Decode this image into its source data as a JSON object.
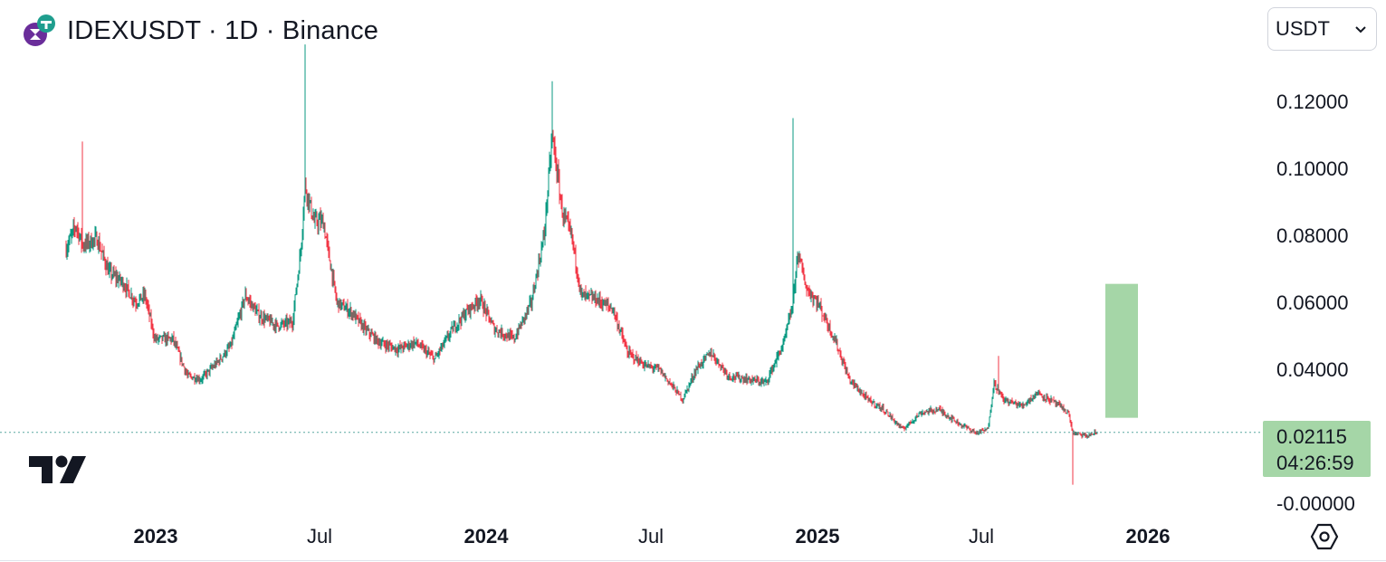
{
  "header": {
    "title": "IDEXUSDT · 1D · Binance",
    "logo_icon": "idex-logo-icon"
  },
  "currency_select": {
    "value": "USDT",
    "chevron_icon": "chevron-down-icon"
  },
  "colors": {
    "up": "#089981",
    "down": "#f23645",
    "current_price_bg": "#a5d6a7",
    "projection_box": "#a5d6a7",
    "axis_text": "#131722"
  },
  "chart_data": {
    "type": "candlestick",
    "symbol": "IDEXUSDT",
    "interval": "1D",
    "exchange": "Binance",
    "y_axis": {
      "range": [
        -0.001,
        0.14
      ],
      "ticks": [
        "0.12000",
        "0.10000",
        "0.08000",
        "0.06000",
        "0.04000",
        "-0.00000"
      ],
      "tick_values": [
        0.12,
        0.1,
        0.08,
        0.06,
        0.04,
        0.0
      ]
    },
    "x_axis": {
      "ticks": [
        {
          "label": "2023",
          "bold": true,
          "date": "2023-01-01"
        },
        {
          "label": "Jul",
          "bold": false,
          "date": "2023-07-01"
        },
        {
          "label": "2024",
          "bold": true,
          "date": "2024-01-01"
        },
        {
          "label": "Jul",
          "bold": false,
          "date": "2024-07-01"
        },
        {
          "label": "2025",
          "bold": true,
          "date": "2025-01-01"
        },
        {
          "label": "Jul",
          "bold": false,
          "date": "2025-07-01"
        },
        {
          "label": "2026",
          "bold": true,
          "date": "2026-01-01"
        }
      ]
    },
    "current_price": {
      "value": "0.02115",
      "countdown": "04:26:59"
    },
    "projection": {
      "from_date": "2025-11-15",
      "to_date": "2025-12-21",
      "low": 0.0255,
      "high": 0.0655
    },
    "price_path": [
      [
        "2022-09-24",
        0.076
      ],
      [
        "2022-10-05",
        0.083
      ],
      [
        "2022-10-12",
        0.077
      ],
      [
        "2022-10-28",
        0.079
      ],
      [
        "2022-11-10",
        0.069
      ],
      [
        "2022-11-25",
        0.066
      ],
      [
        "2022-12-10",
        0.06
      ],
      [
        "2022-12-20",
        0.062
      ],
      [
        "2022-12-31",
        0.049
      ],
      [
        "2023-01-20",
        0.049
      ],
      [
        "2023-02-05",
        0.038
      ],
      [
        "2023-02-20",
        0.037
      ],
      [
        "2023-03-10",
        0.042
      ],
      [
        "2023-03-25",
        0.047
      ],
      [
        "2023-04-10",
        0.062
      ],
      [
        "2023-04-25",
        0.056
      ],
      [
        "2023-05-15",
        0.053
      ],
      [
        "2023-06-01",
        0.054
      ],
      [
        "2023-06-10",
        0.075
      ],
      [
        "2023-06-15",
        0.095
      ],
      [
        "2023-06-25",
        0.084
      ],
      [
        "2023-07-05",
        0.084
      ],
      [
        "2023-07-20",
        0.06
      ],
      [
        "2023-08-05",
        0.057
      ],
      [
        "2023-08-20",
        0.052
      ],
      [
        "2023-09-05",
        0.048
      ],
      [
        "2023-09-25",
        0.046
      ],
      [
        "2023-10-15",
        0.048
      ],
      [
        "2023-11-05",
        0.043
      ],
      [
        "2023-11-25",
        0.052
      ],
      [
        "2023-12-10",
        0.057
      ],
      [
        "2023-12-25",
        0.061
      ],
      [
        "2024-01-10",
        0.052
      ],
      [
        "2024-02-01",
        0.049
      ],
      [
        "2024-02-20",
        0.06
      ],
      [
        "2024-03-05",
        0.08
      ],
      [
        "2024-03-14",
        0.11
      ],
      [
        "2024-03-25",
        0.087
      ],
      [
        "2024-04-05",
        0.079
      ],
      [
        "2024-04-15",
        0.062
      ],
      [
        "2024-05-01",
        0.061
      ],
      [
        "2024-05-20",
        0.058
      ],
      [
        "2024-06-05",
        0.045
      ],
      [
        "2024-06-25",
        0.041
      ],
      [
        "2024-07-10",
        0.04
      ],
      [
        "2024-08-05",
        0.031
      ],
      [
        "2024-08-20",
        0.04
      ],
      [
        "2024-09-05",
        0.045
      ],
      [
        "2024-09-25",
        0.038
      ],
      [
        "2024-10-15",
        0.037
      ],
      [
        "2024-11-05",
        0.036
      ],
      [
        "2024-11-25",
        0.048
      ],
      [
        "2024-12-05",
        0.06
      ],
      [
        "2024-12-10",
        0.075
      ],
      [
        "2024-12-20",
        0.064
      ],
      [
        "2025-01-01",
        0.06
      ],
      [
        "2025-01-20",
        0.049
      ],
      [
        "2025-02-05",
        0.037
      ],
      [
        "2025-02-25",
        0.031
      ],
      [
        "2025-03-15",
        0.028
      ],
      [
        "2025-04-05",
        0.022
      ],
      [
        "2025-04-25",
        0.027
      ],
      [
        "2025-05-15",
        0.028
      ],
      [
        "2025-06-05",
        0.024
      ],
      [
        "2025-06-25",
        0.021
      ],
      [
        "2025-07-08",
        0.022
      ],
      [
        "2025-07-15",
        0.036
      ],
      [
        "2025-07-25",
        0.031
      ],
      [
        "2025-08-15",
        0.029
      ],
      [
        "2025-09-01",
        0.033
      ],
      [
        "2025-09-20",
        0.03
      ],
      [
        "2025-10-05",
        0.027
      ],
      [
        "2025-10-10",
        0.021
      ],
      [
        "2025-10-25",
        0.02
      ],
      [
        "2025-11-06",
        0.0212
      ]
    ],
    "notable_wicks": [
      [
        "2022-10-12",
        0.108
      ],
      [
        "2023-06-15",
        0.137
      ],
      [
        "2024-03-14",
        0.126
      ],
      [
        "2024-12-05",
        0.115
      ],
      [
        "2025-07-20",
        0.044
      ],
      [
        "2025-10-10",
        0.0055
      ]
    ]
  },
  "footer": {
    "tradingview_logo": "tradingview-logo",
    "settings_icon": "settings-hexagon-icon"
  }
}
